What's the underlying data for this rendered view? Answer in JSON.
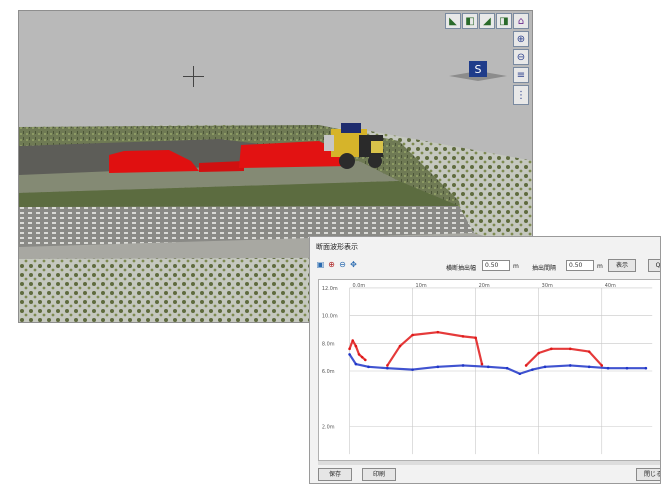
{
  "viewer": {
    "toolbar_icons": [
      "view-left-icon",
      "view-front-icon",
      "view-right-icon",
      "view-back-icon",
      "home-icon"
    ],
    "side_icons": [
      "zoom-in-icon",
      "zoom-out-icon",
      "layers-icon",
      "settings-icon"
    ],
    "compass_label": "S",
    "colors": {
      "background": "#b9b9b9",
      "highlight": "#e01010",
      "vehicle": "#d8b020"
    }
  },
  "profile_window": {
    "title": "断面波形表示",
    "toolbar_icons": [
      "select-icon",
      "zoom-in-icon",
      "zoom-out-icon",
      "pan-icon"
    ],
    "field1_label": "横断抽出幅",
    "field1_value": "0.50",
    "field1_unit": "m",
    "field2_label": "抽出間隔",
    "field2_value": "0.50",
    "field2_unit": "m",
    "button1": "表示",
    "button2": "Q",
    "bottom_left_button": "保存",
    "bottom_mid_button": "印刷",
    "bottom_right_button": "閉じる"
  },
  "chart_data": {
    "type": "scatter",
    "title": "",
    "xlabel": "",
    "ylabel": "",
    "x_ticks": [
      "0.0m",
      "10m",
      "20m",
      "30m",
      "40m"
    ],
    "y_ticks": [
      "12.0m",
      "10.0m",
      "8.0m",
      "6.0m",
      "2.0m"
    ],
    "ylim": [
      0,
      12
    ],
    "grid": true,
    "series": [
      {
        "color": "#1f35c8",
        "segments": [
          {
            "x": [
              0,
              1,
              3,
              6,
              10,
              14,
              18,
              22,
              25,
              27,
              29,
              31,
              35,
              38,
              41,
              44,
              47
            ],
            "y": [
              7.2,
              6.5,
              6.3,
              6.2,
              6.1,
              6.3,
              6.4,
              6.3,
              6.2,
              5.8,
              6.1,
              6.3,
              6.4,
              6.3,
              6.2,
              6.2,
              6.2
            ]
          }
        ]
      },
      {
        "color": "#e01818",
        "segments": [
          {
            "x": [
              0,
              0.5,
              1,
              1.5,
              2,
              2.5
            ],
            "y": [
              7.6,
              8.2,
              7.8,
              7.2,
              7.0,
              6.8
            ]
          },
          {
            "x": [
              6,
              8,
              10,
              14,
              18,
              20,
              21
            ],
            "y": [
              6.4,
              7.8,
              8.6,
              8.8,
              8.5,
              8.4,
              6.5
            ]
          },
          {
            "x": [
              28,
              30,
              32,
              35,
              38,
              40
            ],
            "y": [
              6.4,
              7.3,
              7.6,
              7.6,
              7.4,
              6.4
            ]
          }
        ]
      }
    ]
  }
}
